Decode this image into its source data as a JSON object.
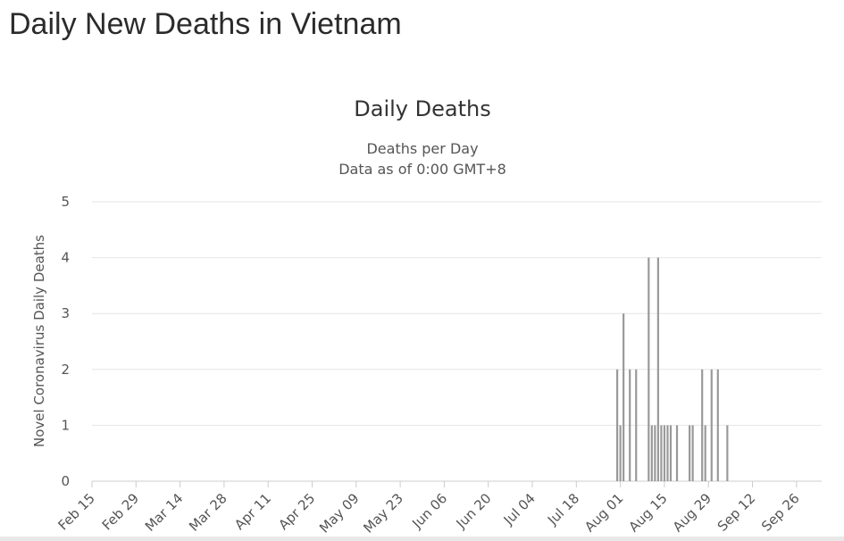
{
  "page": {
    "title": "Daily New Deaths in Vietnam"
  },
  "chart_data": {
    "type": "bar",
    "title": "Daily Deaths",
    "subtitle_lines": [
      "Deaths per Day",
      "Data as of 0:00 GMT+8"
    ],
    "xlabel": "",
    "ylabel": "Novel Coronavirus Daily Deaths",
    "ylim": [
      0,
      5
    ],
    "y_ticks": [
      0,
      1,
      2,
      3,
      4,
      5
    ],
    "grid": true,
    "legend": "none",
    "bar_color": "#999999",
    "x_tick_labels": [
      "Feb 15",
      "Feb 29",
      "Mar 14",
      "Mar 28",
      "Apr 11",
      "Apr 25",
      "May 09",
      "May 23",
      "Jun 06",
      "Jun 20",
      "Jul 04",
      "Jul 18",
      "Aug 01",
      "Aug 15",
      "Aug 29",
      "Sep 12",
      "Sep 26"
    ],
    "categories": [
      "Jul 31",
      "Aug 01",
      "Aug 02",
      "Aug 03",
      "Aug 04",
      "Aug 05",
      "Aug 06",
      "Aug 07",
      "Aug 08",
      "Aug 09",
      "Aug 10",
      "Aug 11",
      "Aug 12",
      "Aug 13",
      "Aug 14",
      "Aug 15",
      "Aug 16",
      "Aug 17",
      "Aug 18",
      "Aug 19",
      "Aug 20",
      "Aug 21",
      "Aug 22",
      "Aug 23",
      "Aug 24",
      "Aug 25",
      "Aug 26",
      "Aug 27",
      "Aug 28",
      "Aug 29",
      "Aug 30",
      "Aug 31",
      "Sep 01",
      "Sep 02",
      "Sep 03",
      "Sep 04"
    ],
    "values": [
      2,
      1,
      3,
      0,
      2,
      0,
      2,
      0,
      0,
      0,
      4,
      1,
      1,
      4,
      1,
      1,
      1,
      1,
      0,
      1,
      0,
      0,
      0,
      1,
      1,
      0,
      0,
      2,
      1,
      0,
      2,
      0,
      2,
      0,
      0,
      1
    ]
  }
}
